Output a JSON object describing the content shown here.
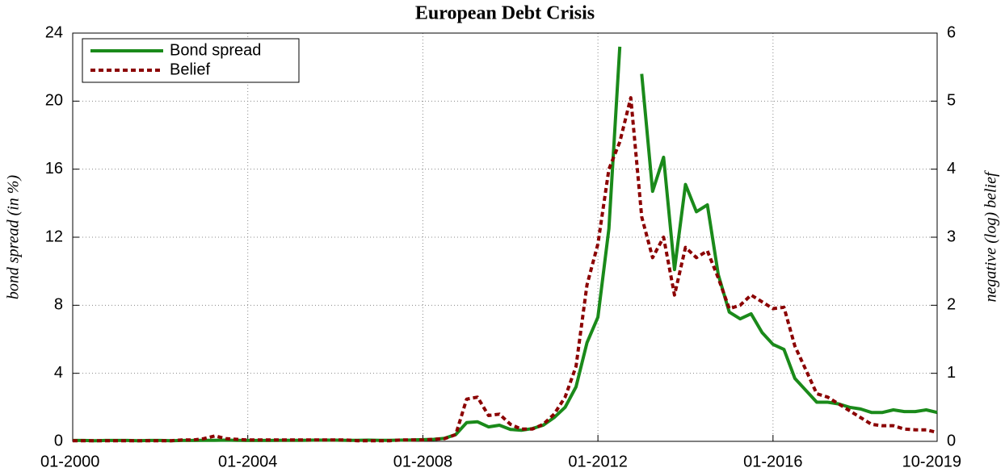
{
  "chart_data": {
    "type": "line",
    "title": "European Debt Crisis",
    "ylabel": "bond spread (in %)",
    "y2label": "negative (log) belief",
    "x": [
      "01-2000",
      "04-2000",
      "07-2000",
      "10-2000",
      "01-2001",
      "04-2001",
      "07-2001",
      "10-2001",
      "01-2002",
      "04-2002",
      "07-2002",
      "10-2002",
      "01-2003",
      "04-2003",
      "07-2003",
      "10-2003",
      "01-2004",
      "04-2004",
      "07-2004",
      "10-2004",
      "01-2005",
      "04-2005",
      "07-2005",
      "10-2005",
      "01-2006",
      "04-2006",
      "07-2006",
      "10-2006",
      "01-2007",
      "04-2007",
      "07-2007",
      "10-2007",
      "01-2008",
      "04-2008",
      "07-2008",
      "10-2008",
      "01-2009",
      "04-2009",
      "07-2009",
      "10-2009",
      "01-2010",
      "04-2010",
      "07-2010",
      "10-2010",
      "01-2011",
      "04-2011",
      "07-2011",
      "10-2011",
      "01-2012",
      "04-2012",
      "07-2012",
      "10-2012",
      "01-2013",
      "04-2013",
      "07-2013",
      "10-2013",
      "01-2014",
      "04-2014",
      "07-2014",
      "10-2014",
      "01-2015",
      "04-2015",
      "07-2015",
      "10-2015",
      "01-2016",
      "04-2016",
      "07-2016",
      "10-2016",
      "01-2017",
      "04-2017",
      "07-2017",
      "10-2017",
      "01-2018",
      "04-2018",
      "07-2018",
      "10-2018",
      "01-2019",
      "04-2019",
      "07-2019",
      "10-2019"
    ],
    "series": [
      {
        "name": "Bond spread",
        "color": "#1a8a1a",
        "axis": "y",
        "dash": false,
        "values": [
          0.05,
          0.05,
          0.04,
          0.05,
          0.05,
          0.05,
          0.04,
          0.05,
          0.05,
          0.04,
          0.05,
          0.05,
          0.06,
          0.06,
          0.07,
          0.06,
          0.05,
          0.05,
          0.05,
          0.06,
          0.06,
          0.06,
          0.07,
          0.07,
          0.07,
          0.06,
          0.06,
          0.07,
          0.06,
          0.06,
          0.07,
          0.08,
          0.1,
          0.12,
          0.18,
          0.4,
          1.1,
          1.15,
          0.85,
          0.95,
          0.7,
          0.65,
          0.75,
          0.95,
          1.4,
          2.0,
          3.2,
          5.8,
          7.3,
          12.5,
          23.2,
          null,
          21.6,
          14.7,
          16.7,
          10.1,
          15.1,
          13.5,
          13.9,
          9.8,
          7.6,
          7.2,
          7.5,
          6.4,
          5.7,
          5.4,
          3.7,
          3.0,
          2.3,
          2.3,
          2.2,
          2.0,
          1.9,
          1.7,
          1.7,
          1.85,
          1.75,
          1.75,
          1.85,
          1.7
        ]
      },
      {
        "name": "Belief",
        "color": "#8b0000",
        "axis": "y2",
        "dash": true,
        "values": [
          0.01,
          0.01,
          0.01,
          0.01,
          0.01,
          0.01,
          0.01,
          0.01,
          0.01,
          0.01,
          0.02,
          0.02,
          0.04,
          0.08,
          0.04,
          0.03,
          0.02,
          0.02,
          0.02,
          0.02,
          0.02,
          0.02,
          0.02,
          0.02,
          0.02,
          0.02,
          0.01,
          0.01,
          0.01,
          0.01,
          0.02,
          0.02,
          0.02,
          0.03,
          0.04,
          0.1,
          0.62,
          0.65,
          0.38,
          0.4,
          0.25,
          0.18,
          0.18,
          0.25,
          0.4,
          0.65,
          1.1,
          2.3,
          2.9,
          4.0,
          4.4,
          5.05,
          3.3,
          2.7,
          3.0,
          2.15,
          2.85,
          2.7,
          2.8,
          2.4,
          1.95,
          2.0,
          2.15,
          2.05,
          1.95,
          1.97,
          1.4,
          1.05,
          0.7,
          0.65,
          0.55,
          0.45,
          0.35,
          0.25,
          0.23,
          0.23,
          0.18,
          0.17,
          0.17,
          0.13
        ]
      }
    ],
    "xlim": [
      "01-2000",
      "10-2019"
    ],
    "xticks": [
      "01-2000",
      "01-2004",
      "01-2008",
      "01-2012",
      "01-2016",
      "10-2019"
    ],
    "ylim": [
      0,
      24
    ],
    "yticks": [
      0,
      4,
      8,
      12,
      16,
      20,
      24
    ],
    "y2lim": [
      0,
      6
    ],
    "y2ticks": [
      0,
      1,
      2,
      3,
      4,
      5,
      6
    ],
    "grid": true,
    "legend": "upper left"
  }
}
